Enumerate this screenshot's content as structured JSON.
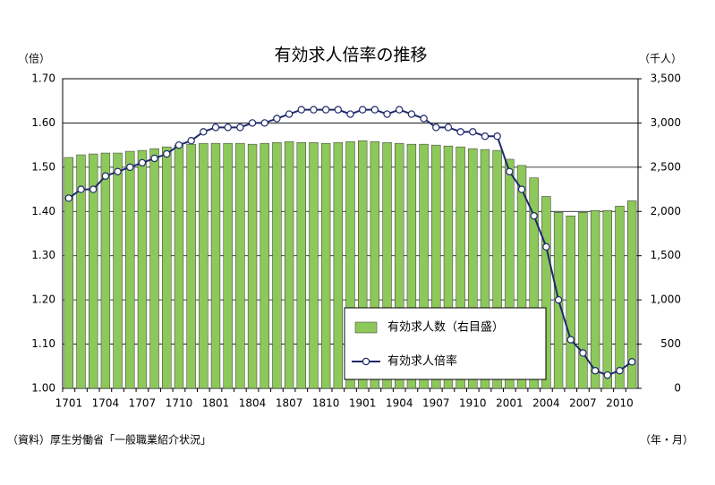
{
  "chart_data": {
    "type": "combo",
    "title": "有効求人倍率の推移",
    "y_unit": "（倍）",
    "y2_unit": "（千人）",
    "x_unit": "（年・月）",
    "source": "（資料）厚生労働省「一般職業紹介状況」",
    "categories": [
      "1701",
      null,
      null,
      "1704",
      null,
      null,
      "1707",
      null,
      null,
      "1710",
      null,
      null,
      "1801",
      null,
      null,
      "1804",
      null,
      null,
      "1807",
      null,
      null,
      "1810",
      null,
      null,
      "1901",
      null,
      null,
      "1904",
      null,
      null,
      "1907",
      null,
      null,
      "1910",
      null,
      null,
      "2001",
      null,
      null,
      "2004",
      null,
      null,
      "2007",
      null,
      null,
      "2010",
      null
    ],
    "series": [
      {
        "name": "有効求人数（右目盛）",
        "type": "bar",
        "axis": "y2",
        "color": "#8dc85a",
        "values": [
          2610,
          2640,
          2650,
          2660,
          2660,
          2680,
          2690,
          2710,
          2730,
          2750,
          2760,
          2770,
          2770,
          2770,
          2770,
          2760,
          2770,
          2780,
          2790,
          2780,
          2780,
          2770,
          2780,
          2790,
          2800,
          2790,
          2780,
          2770,
          2760,
          2760,
          2750,
          2740,
          2730,
          2710,
          2700,
          2690,
          2590,
          2520,
          2380,
          2170,
          1990,
          1950,
          1990,
          2010,
          2010,
          2060,
          2120
        ]
      },
      {
        "name": "有効求人倍率",
        "type": "line",
        "axis": "y",
        "color": "#1f2a6b",
        "values": [
          1.43,
          1.45,
          1.45,
          1.48,
          1.49,
          1.5,
          1.51,
          1.52,
          1.53,
          1.55,
          1.56,
          1.58,
          1.59,
          1.59,
          1.59,
          1.6,
          1.6,
          1.61,
          1.62,
          1.63,
          1.63,
          1.63,
          1.63,
          1.62,
          1.63,
          1.63,
          1.62,
          1.63,
          1.62,
          1.61,
          1.59,
          1.59,
          1.58,
          1.58,
          1.57,
          1.57,
          1.49,
          1.45,
          1.39,
          1.32,
          1.2,
          1.11,
          1.08,
          1.04,
          1.03,
          1.04,
          1.06
        ]
      }
    ],
    "ylim": [
      1,
      1.7
    ],
    "yticks": [
      {
        "value": 1,
        "label": "1.00"
      },
      {
        "value": 1.1,
        "label": "1.10"
      },
      {
        "value": 1.2,
        "label": "1.20"
      },
      {
        "value": 1.3,
        "label": "1.30"
      },
      {
        "value": 1.4,
        "label": "1.40"
      },
      {
        "value": 1.5,
        "label": "1.50"
      },
      {
        "value": 1.6,
        "label": "1.60"
      },
      {
        "value": 1.7,
        "label": "1.70"
      }
    ],
    "y2lim": [
      0,
      3500
    ],
    "y2ticks": [
      0,
      500,
      {
        "value": 1000,
        "label": "1,000"
      },
      {
        "value": 1500,
        "label": "1,500"
      },
      {
        "value": 2000,
        "label": "2,000"
      },
      {
        "value": 2500,
        "label": "2,500"
      },
      {
        "value": 3000,
        "label": "3,000"
      },
      {
        "value": 3500,
        "label": "3,500"
      }
    ],
    "grid": true,
    "legend": "lower-right"
  }
}
